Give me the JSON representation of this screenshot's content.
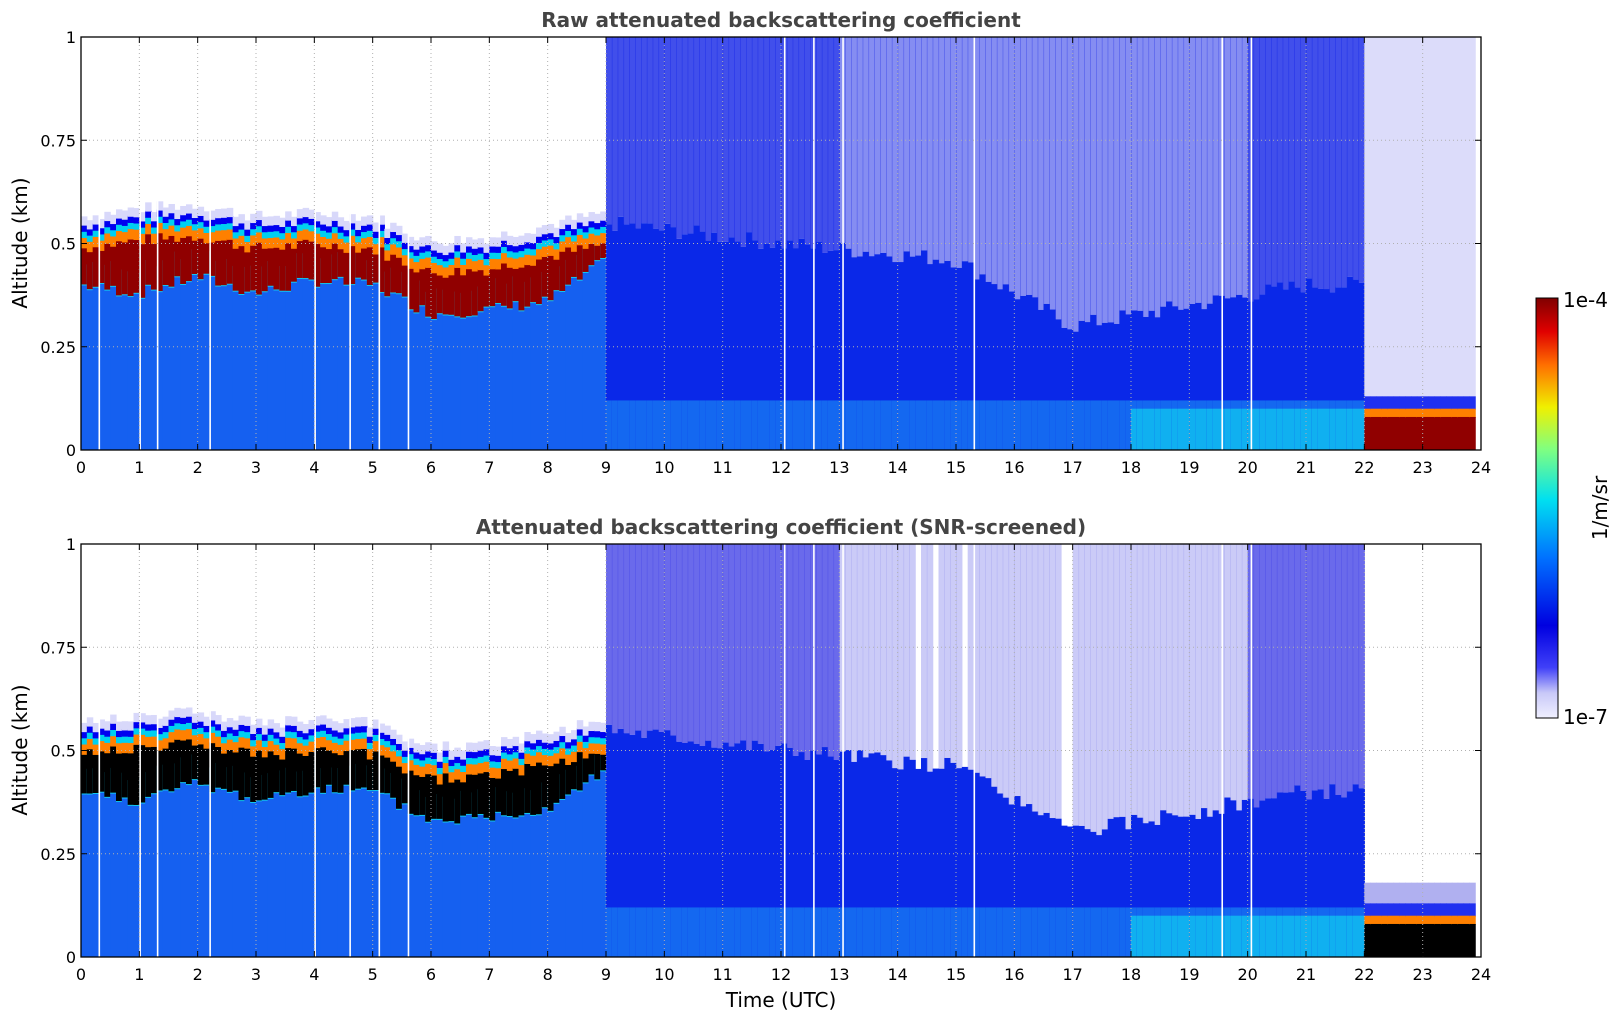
{
  "chart_data": [
    {
      "type": "heatmap",
      "title": "Raw attenuated backscattering coefficient",
      "xlabel": "",
      "ylabel": "Altitude (km)",
      "xlim": [
        0,
        24
      ],
      "ylim": [
        0,
        1
      ],
      "xticks": [
        "0",
        "1",
        "2",
        "3",
        "4",
        "5",
        "6",
        "7",
        "8",
        "9",
        "10",
        "11",
        "12",
        "13",
        "14",
        "15",
        "16",
        "17",
        "18",
        "19",
        "20",
        "21",
        "22",
        "23",
        "24"
      ],
      "yticks": [
        "0",
        "0.25",
        "0.5",
        "0.75",
        "1"
      ],
      "ytick_values": [
        0,
        0.25,
        0.5,
        0.75,
        1
      ],
      "grid": true,
      "layers": {
        "cloud_top_km": [
          [
            0,
            0.52
          ],
          [
            1,
            0.54
          ],
          [
            2,
            0.55
          ],
          [
            3,
            0.52
          ],
          [
            4,
            0.53
          ],
          [
            5,
            0.52
          ],
          [
            6,
            0.46
          ],
          [
            7,
            0.47
          ],
          [
            8,
            0.5
          ],
          [
            9,
            0.53
          ]
        ],
        "cloud_base_km": [
          [
            0,
            0.4
          ],
          [
            1,
            0.38
          ],
          [
            2,
            0.42
          ],
          [
            3,
            0.38
          ],
          [
            4,
            0.41
          ],
          [
            5,
            0.4
          ],
          [
            6,
            0.33
          ],
          [
            7,
            0.34
          ],
          [
            8,
            0.36
          ],
          [
            9,
            0.46
          ]
        ],
        "boundary_layer_top_km": [
          [
            9,
            0.55
          ],
          [
            12,
            0.5
          ],
          [
            15,
            0.46
          ],
          [
            17,
            0.3
          ],
          [
            19,
            0.35
          ],
          [
            21,
            0.4
          ],
          [
            22,
            0.4
          ]
        ],
        "low_cloud_22_24_km": [
          [
            22,
            0.1
          ],
          [
            23,
            0.1
          ],
          [
            24,
            0.1
          ]
        ]
      },
      "missing_profiles_utc": [
        0.3,
        1.0,
        1.3,
        2.2,
        4.0,
        4.6,
        5.1,
        5.6,
        12.05,
        12.55,
        13.05,
        15.3,
        19.55,
        20.05
      ]
    },
    {
      "type": "heatmap",
      "title": "Attenuated backscattering coefficient (SNR-screened)",
      "xlabel": "Time (UTC)",
      "ylabel": "Altitude (km)",
      "xlim": [
        0,
        24
      ],
      "ylim": [
        0,
        1
      ],
      "xticks": [
        "0",
        "1",
        "2",
        "3",
        "4",
        "5",
        "6",
        "7",
        "8",
        "9",
        "10",
        "11",
        "12",
        "13",
        "14",
        "15",
        "16",
        "17",
        "18",
        "19",
        "20",
        "21",
        "22",
        "23",
        "24"
      ],
      "yticks": [
        "0",
        "0.25",
        "0.5",
        "0.75",
        "1"
      ],
      "ytick_values": [
        0,
        0.25,
        0.5,
        0.75,
        1
      ],
      "grid": true,
      "note_saturated_color": "#000000"
    }
  ],
  "colorbar": {
    "label": "1/m/sr",
    "max_label": "1e-4",
    "min_label": "1e-7",
    "range": [
      1e-07,
      0.0001
    ],
    "scale": "log",
    "colormap": "jet"
  },
  "colors": {
    "low": "#e4e4fa",
    "mid": "#1030f0",
    "high": "#800000",
    "saturated": "#000000",
    "title": "#444444"
  }
}
